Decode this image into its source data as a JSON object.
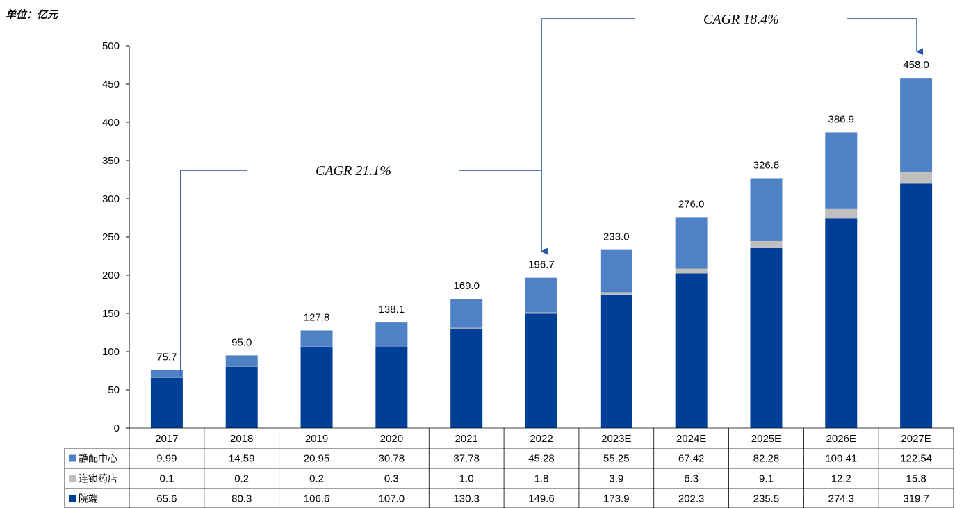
{
  "unit_label": "单位：亿元",
  "colors": {
    "jingpei": "#4f81c7",
    "liansuo": "#bfbfbf",
    "yuanduan": "#003f98",
    "arrow": "#2a56a5"
  },
  "chart_data": {
    "type": "bar",
    "stacked": true,
    "categories": [
      "2017",
      "2018",
      "2019",
      "2020",
      "2021",
      "2022",
      "2023E",
      "2024E",
      "2025E",
      "2026E",
      "2027E"
    ],
    "series": [
      {
        "name": "院端",
        "values": [
          65.6,
          80.3,
          106.6,
          107.0,
          130.3,
          149.6,
          173.9,
          202.3,
          235.5,
          274.3,
          319.7
        ],
        "labels": [
          "65.6",
          "80.3",
          "106.6",
          "107.0",
          "130.3",
          "149.6",
          "173.9",
          "202.3",
          "235.5",
          "274.3",
          "319.7"
        ]
      },
      {
        "name": "连锁药店",
        "values": [
          0.1,
          0.2,
          0.2,
          0.3,
          1.0,
          1.8,
          3.9,
          6.3,
          9.1,
          12.2,
          15.8
        ],
        "labels": [
          "0.1",
          "0.2",
          "0.2",
          "0.3",
          "1.0",
          "1.8",
          "3.9",
          "6.3",
          "9.1",
          "12.2",
          "15.8"
        ]
      },
      {
        "name": "静配中心",
        "values": [
          9.99,
          14.59,
          20.95,
          30.78,
          37.78,
          45.28,
          55.25,
          67.42,
          82.28,
          100.41,
          122.54
        ],
        "labels": [
          "9.99",
          "14.59",
          "20.95",
          "30.78",
          "37.78",
          "45.28",
          "55.25",
          "67.42",
          "82.28",
          "100.41",
          "122.54"
        ]
      }
    ],
    "totals": [
      75.7,
      95.0,
      127.8,
      138.1,
      169.0,
      196.7,
      233.0,
      276.0,
      326.8,
      386.9,
      458.0
    ],
    "total_labels": [
      "75.7",
      "95.0",
      "127.8",
      "138.1",
      "169.0",
      "196.7",
      "233.0",
      "276.0",
      "326.8",
      "386.9",
      "458.0"
    ],
    "ylim": [
      0,
      500
    ],
    "yticks": [
      0,
      50,
      100,
      150,
      200,
      250,
      300,
      350,
      400,
      450,
      500
    ],
    "grid": false,
    "legend": "data-table",
    "table_row_order": [
      "静配中心",
      "连锁药店",
      "院端"
    ],
    "annotations": [
      {
        "text": "CAGR 21.1%",
        "from": "2017",
        "to": "2022"
      },
      {
        "text": "CAGR 18.4%",
        "from": "2022",
        "to": "2027E"
      }
    ]
  }
}
